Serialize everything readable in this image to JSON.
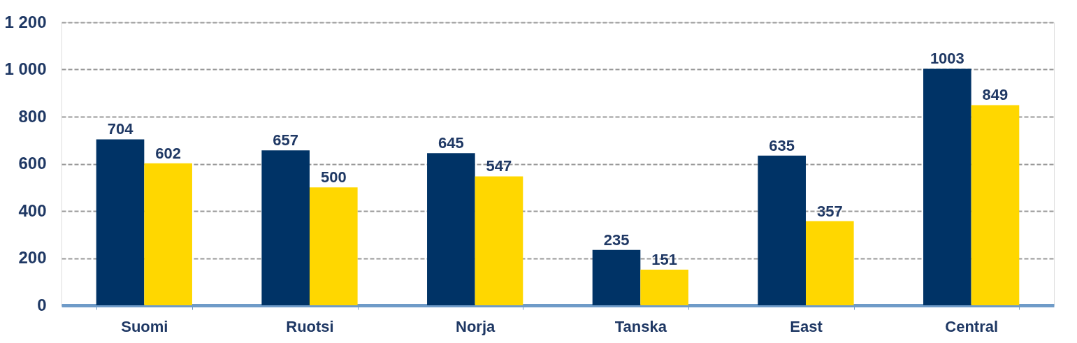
{
  "chart_data": {
    "type": "bar",
    "categories": [
      "Suomi",
      "Ruotsi",
      "Norja",
      "Tanska",
      "East",
      "Central"
    ],
    "series": [
      {
        "color": "#003366",
        "values": [
          704,
          657,
          645,
          235,
          635,
          1003
        ]
      },
      {
        "color": "#ffd700",
        "values": [
          602,
          500,
          547,
          151,
          357,
          849
        ]
      }
    ],
    "ylim": [
      0,
      1200
    ],
    "yticks": [
      0,
      200,
      400,
      600,
      800,
      {
        "value": 1000,
        "label": "1 000"
      },
      {
        "value": 1200,
        "label": "1 200"
      }
    ],
    "grid": "y",
    "legend": false,
    "data_labels": true
  }
}
